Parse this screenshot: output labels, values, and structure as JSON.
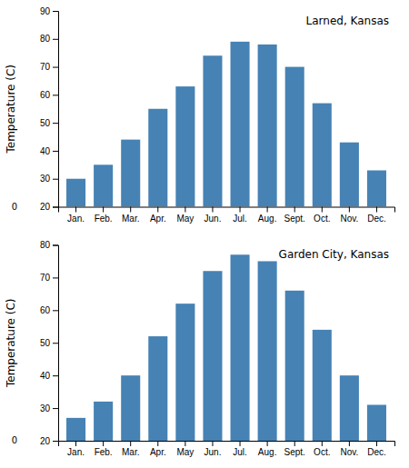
{
  "chart_data": [
    {
      "type": "bar",
      "title": "Larned, Kansas",
      "categories": [
        "Jan.",
        "Feb.",
        "Mar.",
        "Apr.",
        "May",
        "Jun.",
        "Jul.",
        "Aug.",
        "Sept.",
        "Oct.",
        "Nov.",
        "Dec."
      ],
      "values": [
        30,
        35,
        44,
        55,
        63,
        74,
        79,
        78,
        70,
        57,
        43,
        33
      ],
      "ylabel": "Temperature (C)",
      "ylim": [
        20,
        90
      ],
      "yticks": [
        20,
        30,
        40,
        50,
        60,
        70,
        80,
        90
      ],
      "annotations": [
        "0"
      ],
      "grid": false
    },
    {
      "type": "bar",
      "title": "Garden City, Kansas",
      "categories": [
        "Jan.",
        "Feb.",
        "Mar.",
        "Apr.",
        "May",
        "Jun.",
        "Jul.",
        "Aug.",
        "Sept.",
        "Oct.",
        "Nov.",
        "Dec."
      ],
      "values": [
        27,
        32,
        40,
        52,
        62,
        72,
        77,
        75,
        66,
        54,
        40,
        31
      ],
      "ylabel": "Temperature (C)",
      "ylim": [
        20,
        80
      ],
      "yticks": [
        20,
        30,
        40,
        50,
        60,
        70,
        80
      ],
      "annotations": [
        "0"
      ],
      "grid": false
    }
  ]
}
